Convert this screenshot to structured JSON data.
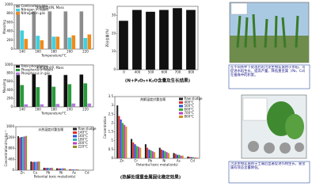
{
  "chart_data": [
    {
      "type": "bar",
      "title": "水热温度对N, Mass",
      "xlabel": "Temperature/°C",
      "ylabel": "Mass/mg",
      "categories": [
        "140",
        "160",
        "180",
        "200",
        "220"
      ],
      "series": [
        {
          "name": "Cont/carbon-gen",
          "color": "#8c8c8c",
          "values": [
            850,
            850,
            850,
            850,
            850
          ]
        },
        {
          "name": "Nitrogen in liquid",
          "color": "#3fd0e0",
          "values": [
            420,
            300,
            280,
            260,
            250
          ]
        },
        {
          "name": "Nitrogen in gas",
          "color": "#f08a1c",
          "values": [
            230,
            200,
            280,
            310,
            330
          ]
        }
      ],
      "ylim": [
        0,
        1000
      ],
      "yticks": [
        0,
        200,
        400,
        600,
        800,
        1000
      ]
    },
    {
      "type": "bar",
      "title": "(N+P₂O₅+K₂O含量及生长结果)",
      "ylabel": "养分含量(%)",
      "categories": [
        "0",
        "400",
        "500",
        "600",
        "700",
        "800"
      ],
      "series": [
        {
          "name": "N+P₂O₅+K₂O",
          "color": "#111111",
          "values": [
            27,
            33,
            32,
            33,
            34,
            33
          ]
        }
      ],
      "ylim": [
        0,
        35
      ],
      "yticks": [
        0,
        10,
        20,
        30
      ]
    },
    {
      "type": "bar",
      "title": "水热温度对P, Mass",
      "xlabel": "Temperature/°C",
      "ylabel": "Mass/mg",
      "categories": [
        "140",
        "160",
        "180",
        "200",
        "220"
      ],
      "series": [
        {
          "name": "Total phosphorus",
          "color": "#111111",
          "values": [
            760,
            780,
            760,
            760,
            770
          ]
        },
        {
          "name": "Phosphorus in liquid",
          "color": "#2a9a3c",
          "values": [
            520,
            470,
            480,
            540,
            560
          ]
        },
        {
          "name": "Phosphorus in gas",
          "color": "#b07ad8",
          "values": [
            60,
            60,
            70,
            80,
            80
          ]
        }
      ],
      "ylim": [
        0,
        1000
      ],
      "yticks": [
        0,
        200,
        400,
        600,
        800,
        1000
      ]
    },
    {
      "type": "bar",
      "title": "水热温度对重金属",
      "xlabel": "Potential toxic metal(oids)",
      "ylabel": "Concentration/mg·kg⁻¹",
      "categories": [
        "Zn",
        "Cu",
        "Pb",
        "Ni",
        "As",
        "Cd"
      ],
      "series": [
        {
          "name": "Raw sludge",
          "color": "#222222",
          "values": [
            1250,
            320,
            90,
            70,
            30,
            10
          ]
        },
        {
          "name": "140°C",
          "color": "#e03030",
          "values": [
            1200,
            300,
            85,
            65,
            28,
            9
          ]
        },
        {
          "name": "160°C",
          "color": "#3050e0",
          "values": [
            1220,
            310,
            88,
            66,
            27,
            9
          ]
        },
        {
          "name": "180°C",
          "color": "#30b0b0",
          "values": [
            1230,
            305,
            86,
            68,
            29,
            10
          ]
        },
        {
          "name": "200°C",
          "color": "#c040c0",
          "values": [
            1240,
            315,
            87,
            69,
            30,
            10
          ]
        },
        {
          "name": "220°C",
          "color": "#909020",
          "values": [
            1260,
            320,
            89,
            70,
            31,
            11
          ]
        }
      ],
      "ylim": [
        0,
        1600
      ],
      "yticks": [
        0,
        400,
        800,
        1200,
        1600
      ]
    },
    {
      "type": "bar",
      "title": "热解温度对重金属",
      "xlabel": "Potential toxic metal(oids)",
      "ylabel": "Concentration",
      "categories": [
        "Zn",
        "Cr",
        "Pb",
        "Ni",
        "As",
        "Cd"
      ],
      "series": [
        {
          "name": "Raw sludge",
          "color": "#222222",
          "values": [
            3.0,
            1.1,
            0.8,
            0.6,
            0.3,
            0.1
          ]
        },
        {
          "name": "400°C",
          "color": "#e03030",
          "values": [
            2.4,
            0.9,
            0.6,
            0.5,
            0.25,
            0.08
          ]
        },
        {
          "name": "500°C",
          "color": "#3050e0",
          "values": [
            2.2,
            0.8,
            0.5,
            0.45,
            0.2,
            0.07
          ]
        },
        {
          "name": "600°C",
          "color": "#30b030",
          "values": [
            2.0,
            0.7,
            0.45,
            0.4,
            0.2,
            0.06
          ]
        },
        {
          "name": "700°C",
          "color": "#c040c0",
          "values": [
            1.9,
            0.65,
            0.4,
            0.35,
            0.15,
            0.05
          ]
        },
        {
          "name": "800°C",
          "color": "#d09020",
          "values": [
            1.8,
            0.6,
            0.35,
            0.3,
            0.15,
            0.05
          ]
        }
      ],
      "ylim": [
        0,
        3.5
      ],
      "yticks": [
        0,
        0.5,
        1,
        1.5,
        2,
        2.5,
        3,
        3.5
      ]
    }
  ],
  "panels": {
    "caption_2": "(热解处理重金属固化稳定效果)",
    "text_1": "在不同条件下处理后的污泥生物炭施用于水稻，可促进水稻生长，提高产量，降低重金属（Pb、Cd）在植株中的积累。",
    "text_2": "污泥生物炭施用于土壤后显著促进作物生长，重金属有效态含量降低。"
  }
}
